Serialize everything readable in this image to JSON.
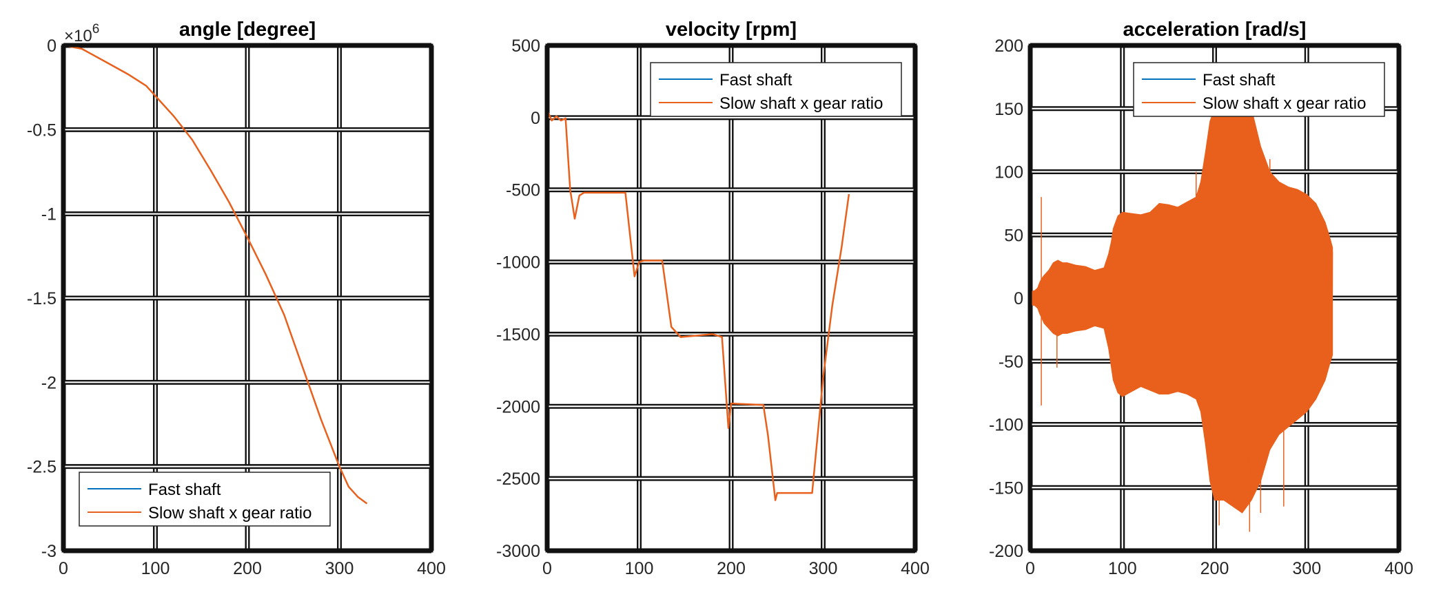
{
  "colors": {
    "fast_shaft": "#0072BD",
    "slow_shaft": "#E8601C",
    "grid": "#111111",
    "axes": "#111111"
  },
  "chart_data": [
    {
      "type": "line",
      "title": "angle [degree]",
      "xlabel": "",
      "ylabel": "",
      "xlim": [
        0,
        400
      ],
      "ylim": [
        -3000000,
        0
      ],
      "xticks": [
        0,
        100,
        200,
        300,
        400
      ],
      "xtick_labels": [
        "0",
        "100",
        "200",
        "300",
        "400"
      ],
      "yticks": [
        0,
        -500000,
        -1000000,
        -1500000,
        -2000000,
        -2500000,
        -3000000
      ],
      "ytick_labels": [
        "0",
        "-0.5",
        "-1",
        "-1.5",
        "-2",
        "-2.5",
        "-3"
      ],
      "y_exponent_label": {
        "base": "×10",
        "power": "6"
      },
      "grid": true,
      "legend_position": "bottom-right",
      "series": [
        {
          "name": "Fast shaft",
          "color": "#0072BD",
          "x": [
            0,
            10,
            20,
            30,
            50,
            70,
            90,
            100,
            120,
            140,
            160,
            180,
            200,
            220,
            240,
            260,
            280,
            300,
            310,
            320,
            330
          ],
          "y": [
            0,
            -10000,
            -20000,
            -50000,
            -110000,
            -170000,
            -240000,
            -300000,
            -420000,
            -560000,
            -740000,
            -930000,
            -1140000,
            -1360000,
            -1600000,
            -1910000,
            -2220000,
            -2500000,
            -2620000,
            -2680000,
            -2720000
          ]
        },
        {
          "name": "Slow shaft x gear ratio",
          "color": "#E8601C",
          "x": [
            0,
            10,
            20,
            30,
            50,
            70,
            90,
            100,
            120,
            140,
            160,
            180,
            200,
            220,
            240,
            260,
            280,
            300,
            310,
            320,
            330
          ],
          "y": [
            0,
            -10000,
            -20000,
            -50000,
            -110000,
            -170000,
            -240000,
            -300000,
            -420000,
            -560000,
            -740000,
            -930000,
            -1140000,
            -1360000,
            -1600000,
            -1910000,
            -2220000,
            -2500000,
            -2620000,
            -2680000,
            -2720000
          ]
        }
      ]
    },
    {
      "type": "line",
      "title": "velocity [rpm]",
      "xlabel": "",
      "ylabel": "",
      "xlim": [
        0,
        400
      ],
      "ylim": [
        -3000,
        500
      ],
      "xticks": [
        0,
        100,
        200,
        300,
        400
      ],
      "xtick_labels": [
        "0",
        "100",
        "200",
        "300",
        "400"
      ],
      "yticks": [
        500,
        0,
        -500,
        -1000,
        -1500,
        -2000,
        -2500,
        -3000
      ],
      "ytick_labels": [
        "500",
        "0",
        "-500",
        "-1000",
        "-1500",
        "-2000",
        "-2500",
        "-3000"
      ],
      "grid": true,
      "legend_position": "top-right",
      "series": [
        {
          "name": "Fast shaft",
          "color": "#0072BD",
          "x": [
            0,
            5,
            10,
            15,
            20,
            25,
            30,
            35,
            40,
            85,
            95,
            100,
            105,
            125,
            135,
            145,
            180,
            190,
            197,
            200,
            235,
            240,
            248,
            250,
            288,
            300,
            310,
            320,
            328
          ],
          "y": [
            50,
            -20,
            10,
            -20,
            -5,
            -500,
            -700,
            -540,
            -520,
            -520,
            -1100,
            -1000,
            -990,
            -990,
            -1450,
            -1520,
            -1500,
            -1520,
            -2150,
            -1980,
            -1990,
            -2200,
            -2650,
            -2600,
            -2600,
            -1800,
            -1300,
            -900,
            -530
          ]
        },
        {
          "name": "Slow shaft x gear ratio",
          "color": "#E8601C",
          "x": [
            0,
            5,
            10,
            15,
            20,
            25,
            30,
            35,
            40,
            85,
            95,
            100,
            105,
            125,
            135,
            145,
            180,
            190,
            197,
            200,
            235,
            240,
            248,
            250,
            288,
            300,
            310,
            320,
            328
          ],
          "y": [
            50,
            -20,
            10,
            -20,
            -5,
            -500,
            -700,
            -540,
            -520,
            -520,
            -1100,
            -1000,
            -990,
            -990,
            -1450,
            -1520,
            -1500,
            -1520,
            -2150,
            -1980,
            -1990,
            -2200,
            -2650,
            -2600,
            -2600,
            -1800,
            -1300,
            -900,
            -530
          ]
        }
      ]
    },
    {
      "type": "line",
      "title": "acceleration [rad/s]",
      "xlabel": "",
      "ylabel": "",
      "xlim": [
        0,
        400
      ],
      "ylim": [
        -200,
        200
      ],
      "xticks": [
        0,
        100,
        200,
        300,
        400
      ],
      "xtick_labels": [
        "0",
        "100",
        "200",
        "300",
        "400"
      ],
      "yticks": [
        200,
        150,
        100,
        50,
        0,
        -50,
        -100,
        -150,
        -200
      ],
      "ytick_labels": [
        "200",
        "150",
        "100",
        "50",
        "0",
        "-50",
        "-100",
        "-150",
        "-200"
      ],
      "grid": true,
      "legend_position": "top-right",
      "envelope": {
        "x": [
          0,
          5,
          8,
          10,
          12,
          15,
          20,
          25,
          30,
          35,
          40,
          50,
          60,
          70,
          80,
          85,
          88,
          90,
          95,
          100,
          110,
          120,
          130,
          140,
          150,
          160,
          170,
          180,
          185,
          190,
          195,
          200,
          210,
          220,
          230,
          240,
          250,
          260,
          270,
          280,
          290,
          300,
          310,
          320,
          325,
          328
        ],
        "upper": [
          5,
          6,
          8,
          12,
          15,
          18,
          22,
          28,
          30,
          28,
          28,
          26,
          25,
          22,
          24,
          35,
          45,
          55,
          65,
          68,
          67,
          66,
          68,
          75,
          74,
          72,
          76,
          80,
          92,
          115,
          140,
          150,
          150,
          150,
          150,
          150,
          120,
          100,
          92,
          88,
          86,
          82,
          75,
          60,
          48,
          40
        ],
        "lower": [
          -5,
          -6,
          -8,
          -12,
          -15,
          -20,
          -24,
          -28,
          -30,
          -28,
          -28,
          -26,
          -25,
          -22,
          -24,
          -40,
          -55,
          -65,
          -75,
          -78,
          -74,
          -70,
          -73,
          -76,
          -76,
          -74,
          -76,
          -80,
          -90,
          -115,
          -145,
          -160,
          -160,
          -165,
          -170,
          -160,
          -145,
          -120,
          -108,
          -102,
          -96,
          -90,
          -80,
          -65,
          -52,
          -45
        ],
        "spikes": [
          {
            "x": 12,
            "y": 80
          },
          {
            "x": 12,
            "y": -85
          },
          {
            "x": 29,
            "y": -55
          },
          {
            "x": 180,
            "y": 100
          },
          {
            "x": 205,
            "y": -180
          },
          {
            "x": 238,
            "y": -185
          },
          {
            "x": 250,
            "y": -170
          },
          {
            "x": 260,
            "y": 110
          },
          {
            "x": 275,
            "y": -165
          }
        ]
      },
      "series": [
        {
          "name": "Fast shaft",
          "color": "#0072BD"
        },
        {
          "name": "Slow shaft x gear ratio",
          "color": "#E8601C"
        }
      ]
    }
  ]
}
